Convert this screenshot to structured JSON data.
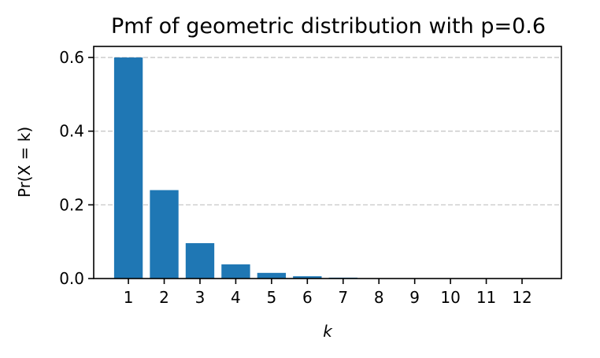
{
  "chart_data": {
    "type": "bar",
    "title": "Pmf of geometric distribution with p=0.6",
    "xlabel": "k",
    "ylabel": "Pr(X = k)",
    "categories": [
      "1",
      "2",
      "3",
      "4",
      "5",
      "6",
      "7",
      "8",
      "9",
      "10",
      "11",
      "12"
    ],
    "values": [
      0.6,
      0.24,
      0.096,
      0.0384,
      0.01536,
      0.006144,
      0.0024576,
      0.00098304,
      0.000393216,
      0.000157286,
      6.29146e-05,
      2.51658e-05
    ],
    "yticks": [
      "0.0",
      "0.2",
      "0.4",
      "0.6"
    ],
    "ylim": [
      0,
      0.63
    ],
    "xlim": [
      0.03,
      13.1
    ],
    "grid": "y, dashed",
    "bar_color": "#1f77b4"
  }
}
